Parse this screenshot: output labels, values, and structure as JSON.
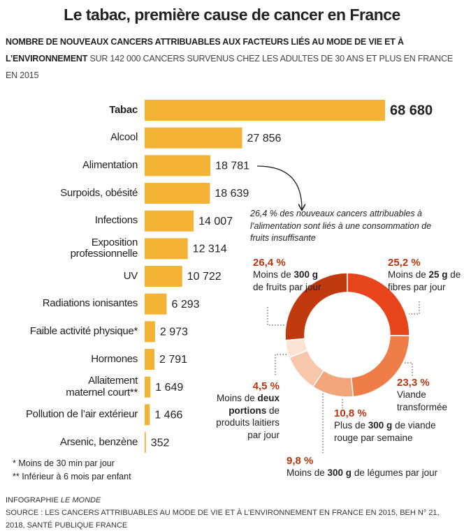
{
  "header": {
    "title": "Le tabac, première cause de cancer en France",
    "subtitle_bold": "NOMBRE DE NOUVEAUX CANCERS ATTRIBUABLES AUX FACTEURS LIÉS AU MODE DE VIE ET À L’ENVIRONNEMENT",
    "subtitle": "SUR 142 000 CANCERS SURVENUS CHEZ LES ADULTES DE 30 ANS ET PLUS EN FRANCE EN 2015"
  },
  "chart_data": [
    {
      "type": "bar",
      "orientation": "horizontal",
      "color": "#f5b335",
      "categories": [
        "Tabac",
        "Alcool",
        "Alimentation",
        "Surpoids, obésité",
        "Infections",
        "Exposition\nprofessionnelle",
        "UV",
        "Radiations ionisantes",
        "Faible activité physique*",
        "Hormones",
        "Allaitement\nmaternel court**",
        "Pollution de l’air extérieur",
        "Arsenic, benzène"
      ],
      "values": [
        68680,
        27856,
        18781,
        18639,
        14007,
        12314,
        10722,
        6293,
        2973,
        2791,
        1649,
        1466,
        352
      ],
      "value_labels": [
        "68 680",
        "27 856",
        "18 781",
        "18 639",
        "14 007",
        "12 314",
        "10 722",
        "6 293",
        "2 973",
        "2 791",
        "1 649",
        "1 466",
        "352"
      ],
      "footnotes": [
        "* Moins de 30 min par jour",
        "** Inférieur à 6 mois par enfant"
      ]
    },
    {
      "type": "donut",
      "annotation": "26,4 % des nouveaux cancers attribuables à l’alimentation sont liés à une consommation de fruits insuffisante",
      "categories": [
        [
          "Moins de ",
          "300 g",
          " de fruits par jour"
        ],
        [
          "Moins de ",
          "25 g",
          " de fibres par jour"
        ],
        [
          "Viande transformée"
        ],
        [
          "Plus de ",
          "300 g",
          " de viande rouge par semaine"
        ],
        [
          "Moins de ",
          "300 g",
          " de légumes par jour"
        ],
        [
          "Moins de ",
          "deux portions",
          " de produits laitiers par jour"
        ]
      ],
      "values": [
        26.4,
        25.2,
        23.3,
        10.8,
        9.8,
        4.5
      ],
      "value_labels": [
        "26,4 %",
        "25,2 %",
        "23,3 %",
        "10,8 %",
        "9,8 %",
        "4,5 %"
      ],
      "colors": [
        "#c1390f",
        "#e8451c",
        "#ef7d47",
        "#f3a57c",
        "#f8c6aa",
        "#fce3d3"
      ]
    }
  ],
  "footer": {
    "credit_prefix": "INFOGRAPHIE",
    "credit": "LE MONDE",
    "source": "SOURCE : LES CANCERS ATTRIBUABLES AU MODE DE VIE ET À L’ENVIRONNEMENT EN FRANCE EN 2015, BEH N° 21, 2018, SANTÉ PUBLIQUE FRANCE"
  }
}
